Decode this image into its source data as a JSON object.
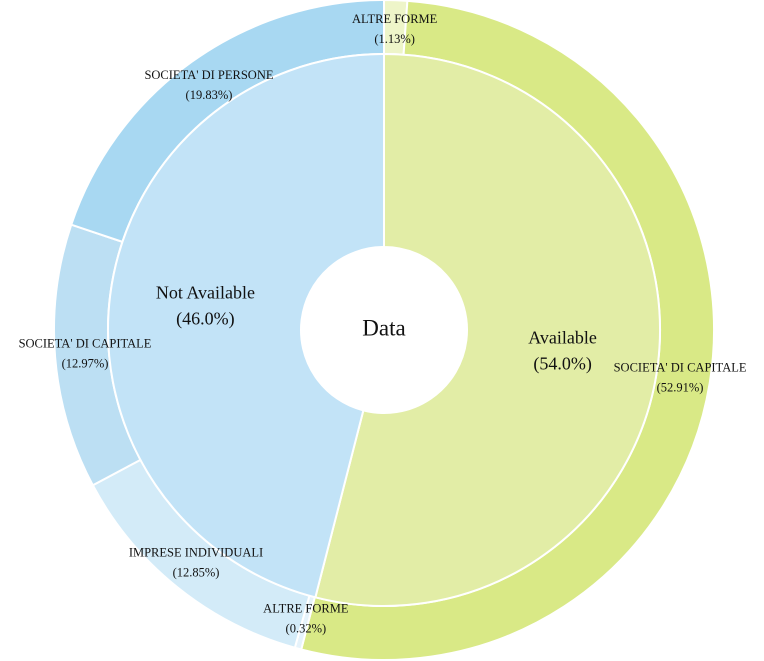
{
  "chart_data": {
    "type": "sunburst",
    "center_label": "Data",
    "inner": {
      "labels": [
        "Available",
        "Not Available"
      ],
      "values": [
        54.0,
        46.0
      ],
      "value_labels": [
        "(54.0%)",
        "(46.0%)"
      ],
      "colors": [
        "#e2eda6",
        "#c2e3f7"
      ]
    },
    "outer": {
      "labels": [
        "ALTRE FORME",
        "SOCIETA' DI CAPITALE",
        "ALTRE FORME",
        "IMPRESE INDIVIDUALI",
        "SOCIETA' DI CAPITALE",
        "SOCIETA' DI PERSONE"
      ],
      "values": [
        1.13,
        52.91,
        0.32,
        12.85,
        12.97,
        19.83
      ],
      "value_labels": [
        "(1.13%)",
        "(52.91%)",
        "(0.32%)",
        "(12.85%)",
        "(12.97%)",
        "(19.83%)"
      ],
      "colors": [
        "#eef5c9",
        "#d9e986",
        "#e6f3fb",
        "#d3ebf8",
        "#bcdff3",
        "#a8d8f2"
      ]
    }
  }
}
